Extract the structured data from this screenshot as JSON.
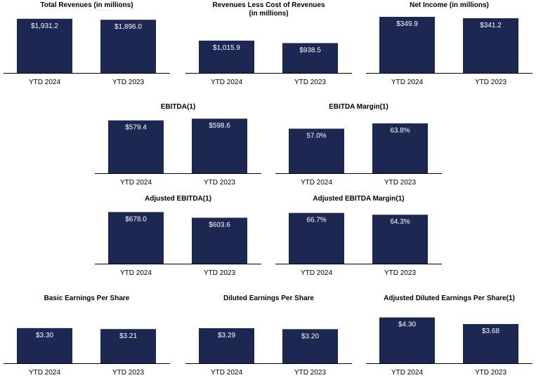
{
  "colors": {
    "bar": "#1c2752",
    "axis": "#000000",
    "label_in_bar": "#ffffff"
  },
  "chart_data": [
    {
      "type": "bar",
      "title": "Total Revenues (in millions)",
      "categories": [
        "YTD 2024",
        "YTD 2023"
      ],
      "values": [
        1931.2,
        1896.0
      ],
      "data_labels": [
        "$1,931.2",
        "$1,896.0"
      ],
      "ylim": [
        0,
        2000
      ]
    },
    {
      "type": "bar",
      "title": "Revenues Less Cost of Revenues\n(in millions)",
      "categories": [
        "YTD 2024",
        "YTD 2023"
      ],
      "values": [
        1015.9,
        938.5
      ],
      "data_labels": [
        "$1,015.9",
        "$938.5"
      ],
      "ylim": [
        0,
        1500
      ]
    },
    {
      "type": "bar",
      "title": "Net Income (in millions)",
      "categories": [
        "YTD 2024",
        "YTD 2023"
      ],
      "values": [
        349.9,
        341.2
      ],
      "data_labels": [
        "$349.9",
        "$341.2"
      ],
      "ylim": [
        0,
        350
      ]
    },
    {
      "type": "bar",
      "title": "EBITDA(1)",
      "categories": [
        "YTD 2024",
        "YTD 2023"
      ],
      "values": [
        579.4,
        598.6
      ],
      "data_labels": [
        "$579.4",
        "$598.6"
      ],
      "ylim": [
        0,
        600
      ]
    },
    {
      "type": "bar",
      "title": "EBITDA Margin(1)",
      "categories": [
        "YTD 2024",
        "YTD 2023"
      ],
      "values": [
        57.0,
        63.8
      ],
      "data_labels": [
        "57.0%",
        "63.8%"
      ],
      "ylim": [
        0,
        70
      ]
    },
    {
      "type": "bar",
      "title": "Adjusted EBITDA(1)",
      "categories": [
        "YTD 2024",
        "YTD 2023"
      ],
      "values": [
        678.0,
        603.6
      ],
      "data_labels": [
        "$678.0",
        "$603.6"
      ],
      "ylim": [
        0,
        700
      ]
    },
    {
      "type": "bar",
      "title": "Adjusted EBITDA Margin(1)",
      "categories": [
        "YTD 2024",
        "YTD 2023"
      ],
      "values": [
        66.7,
        64.3
      ],
      "data_labels": [
        "66.7%",
        "64.3%"
      ],
      "ylim": [
        0,
        70
      ]
    },
    {
      "type": "bar",
      "title": "Basic Earnings Per Share",
      "categories": [
        "YTD 2024",
        "YTD 2023"
      ],
      "values": [
        3.3,
        3.21
      ],
      "data_labels": [
        "$3.30",
        "$3.21"
      ],
      "ylim": [
        0,
        5
      ]
    },
    {
      "type": "bar",
      "title": "Diluted Earnings Per Share",
      "categories": [
        "YTD 2024",
        "YTD 2023"
      ],
      "values": [
        3.29,
        3.2
      ],
      "data_labels": [
        "$3.29",
        "$3.20"
      ],
      "ylim": [
        0,
        5
      ]
    },
    {
      "type": "bar",
      "title": "Adjusted Diluted Earnings Per Share(1)",
      "categories": [
        "YTD 2024",
        "YTD 2023"
      ],
      "values": [
        4.3,
        3.68
      ],
      "data_labels": [
        "$4.30",
        "$3.68"
      ],
      "ylim": [
        0,
        5
      ]
    }
  ]
}
